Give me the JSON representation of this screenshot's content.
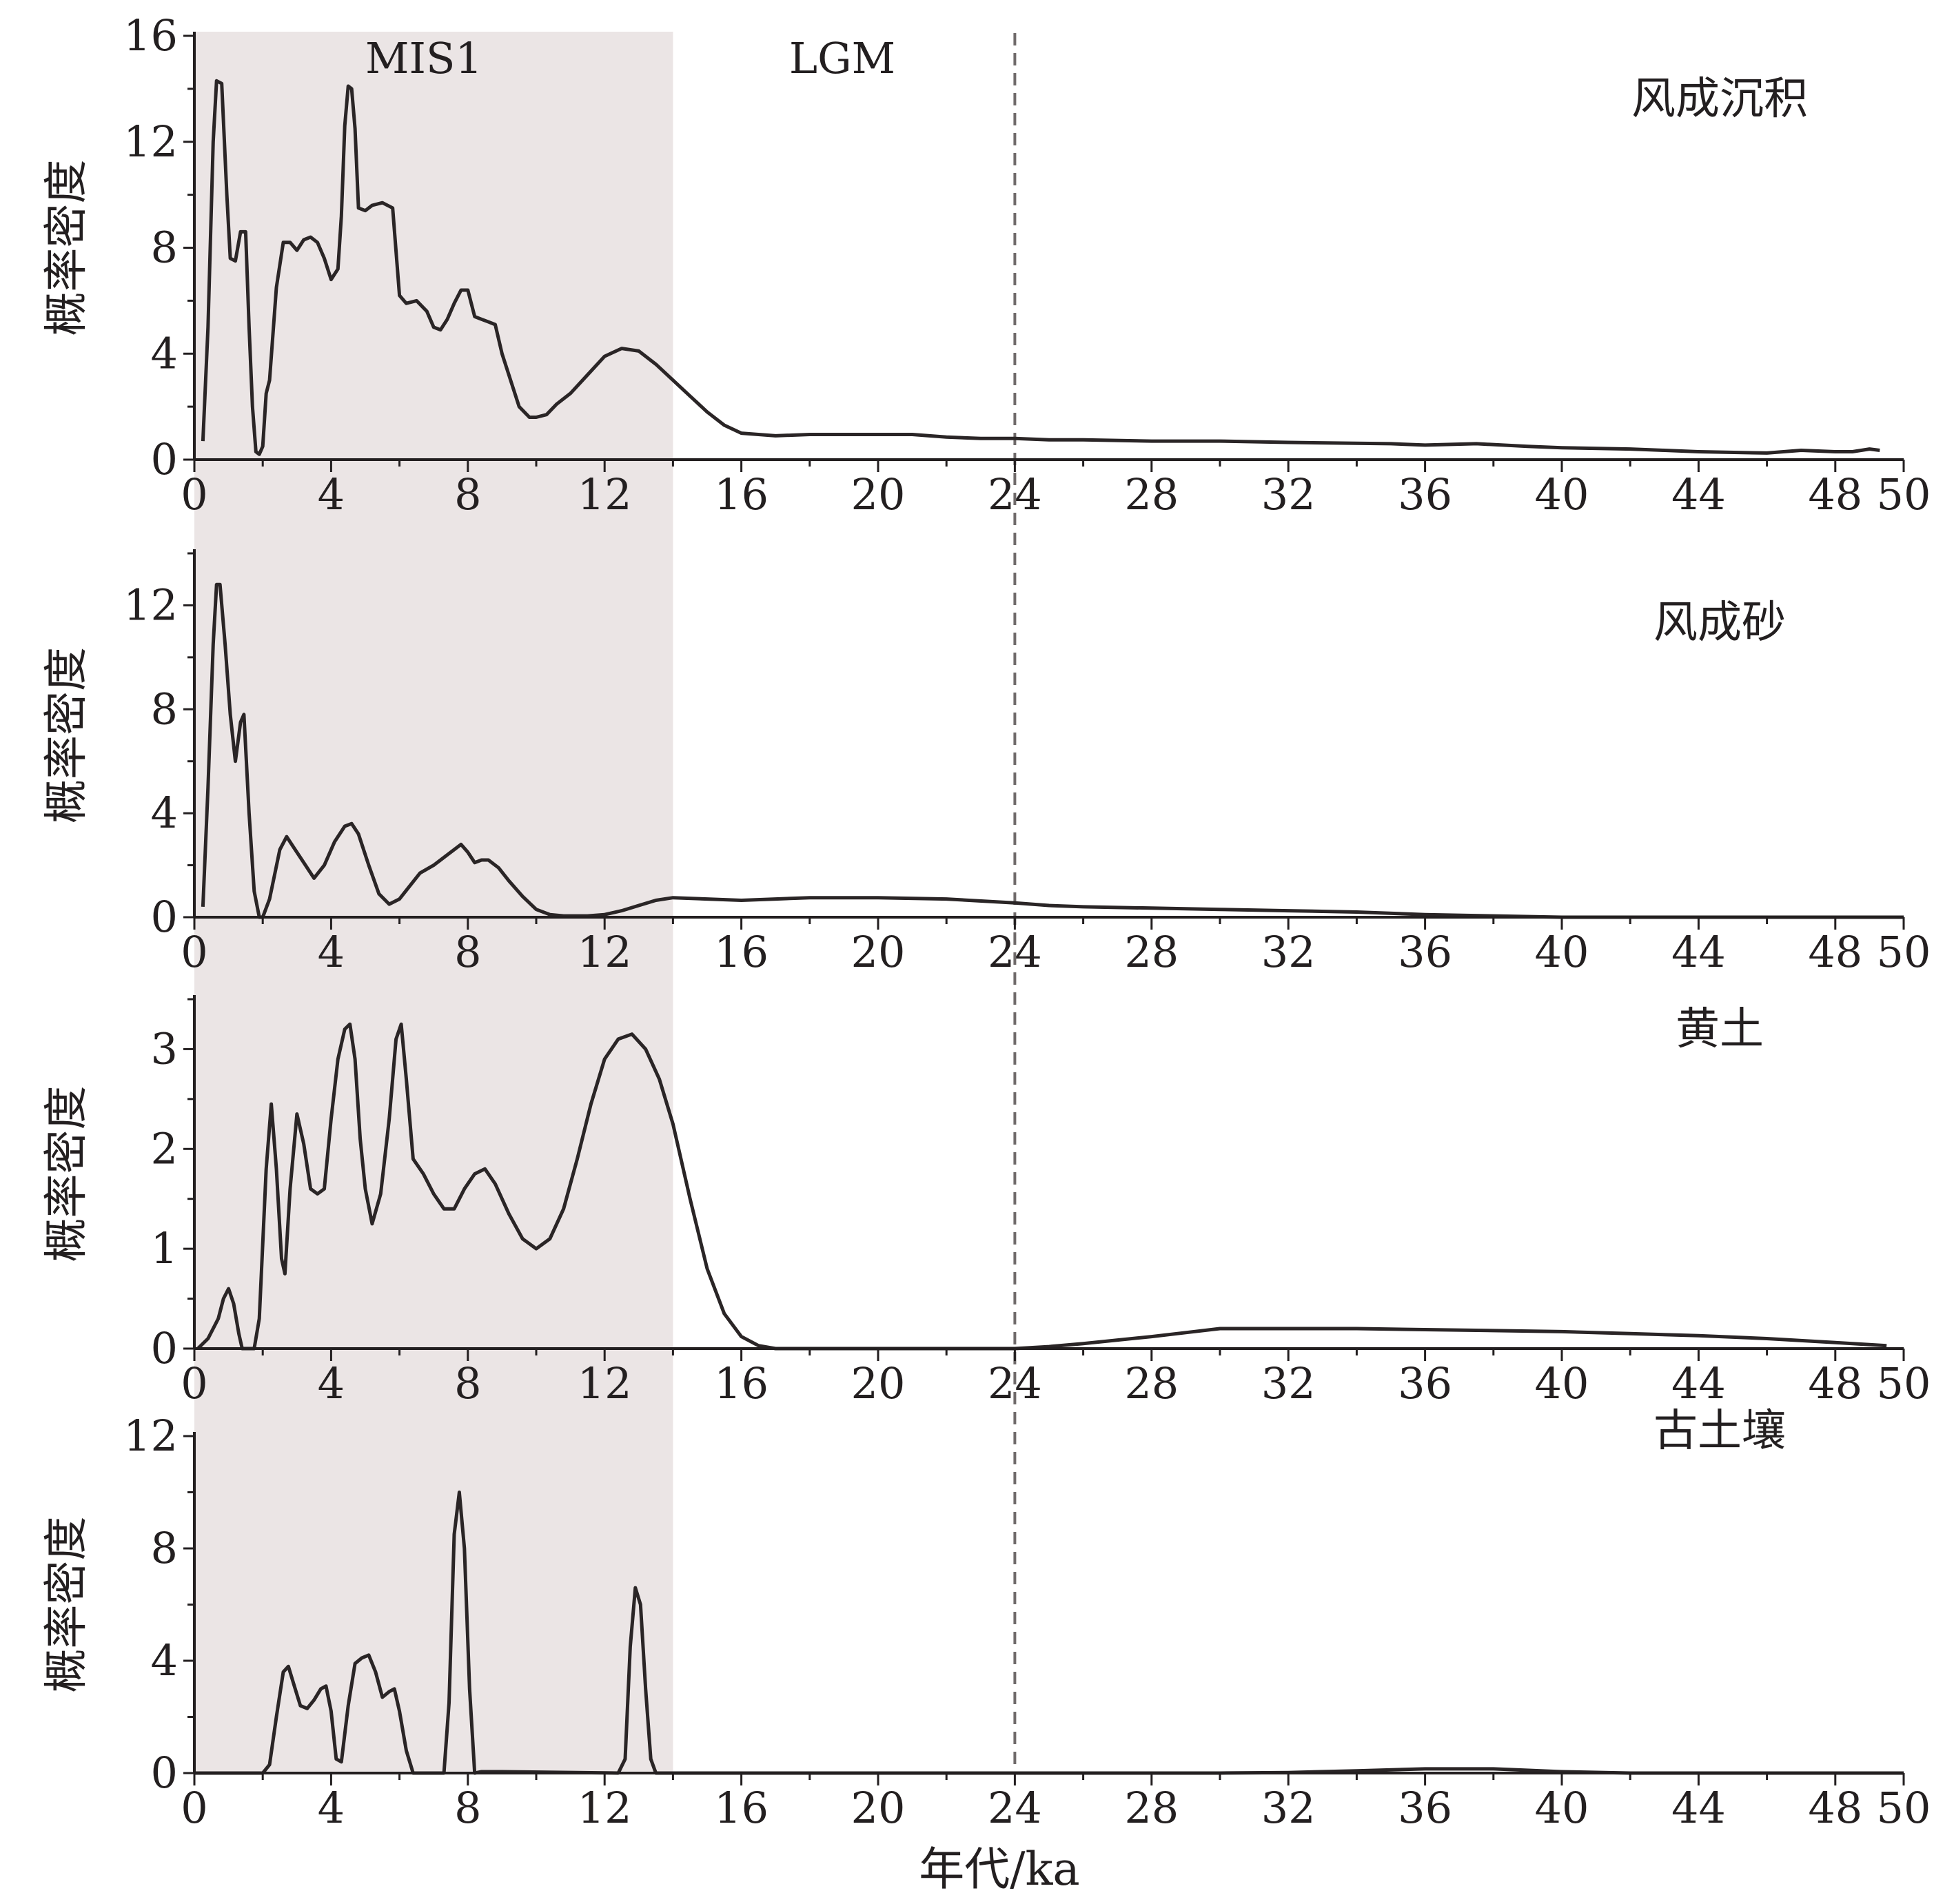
{
  "figure": {
    "xlabel": "年代/ka",
    "colors": {
      "axis": "#231f20",
      "line": "#2a2526",
      "shade": "#ebe5e5",
      "lgm_line": "#6f6a6a",
      "text": "#231f20"
    }
  },
  "chart_data": [
    {
      "type": "line",
      "panel_label": "风成沉积",
      "ylabel": "概率密度",
      "xlim": [
        0,
        50
      ],
      "ylim": [
        0,
        16
      ],
      "xticks": [
        0,
        4,
        8,
        12,
        16,
        20,
        24,
        28,
        32,
        36,
        40,
        44,
        48,
        50
      ],
      "yticks": [
        0,
        4,
        8,
        12,
        16
      ],
      "shaded_region": {
        "x": [
          0,
          14
        ],
        "label": "MIS1"
      },
      "reference_line": {
        "x": 24,
        "style": "dashed",
        "label": "LGM"
      },
      "series": [
        {
          "x": [
            0.25,
            0.4,
            0.55,
            0.65,
            0.8,
            0.95,
            1.05,
            1.2,
            1.35,
            1.5,
            1.6,
            1.7,
            1.8,
            1.9,
            2.0,
            2.1,
            2.2,
            2.4,
            2.6,
            2.8,
            3.0,
            3.2,
            3.4,
            3.6,
            3.8,
            4.0,
            4.2,
            4.3,
            4.4,
            4.5,
            4.6,
            4.7,
            4.8,
            5.0,
            5.2,
            5.5,
            5.8,
            6.0,
            6.2,
            6.5,
            6.8,
            7.0,
            7.2,
            7.4,
            7.6,
            7.8,
            8.0,
            8.2,
            8.4,
            8.6,
            8.8,
            9.0,
            9.2,
            9.5,
            9.8,
            10.0,
            10.3,
            10.6,
            11.0,
            11.5,
            12.0,
            12.5,
            13.0,
            13.5,
            14.0,
            14.5,
            15.0,
            15.5,
            16.0,
            16.5,
            17.0,
            18.0,
            19.0,
            20.0,
            21.0,
            22.0,
            23.0,
            24.0,
            25.0,
            26.0,
            28.0,
            30.0,
            32.0,
            35.0,
            36.0,
            37.5,
            39.0,
            40.0,
            42.0,
            43.0,
            44.0,
            46.0,
            47.0,
            48.0,
            48.5,
            49.0,
            49.3
          ],
          "y": [
            0.7,
            5.0,
            12.0,
            14.3,
            14.2,
            10.0,
            7.6,
            7.5,
            8.6,
            8.6,
            5.0,
            2.0,
            0.3,
            0.2,
            0.5,
            2.5,
            3.0,
            6.5,
            8.2,
            8.2,
            7.9,
            8.3,
            8.4,
            8.2,
            7.6,
            6.8,
            7.2,
            9.2,
            12.6,
            14.1,
            14.0,
            12.5,
            9.5,
            9.4,
            9.6,
            9.7,
            9.5,
            6.2,
            5.9,
            6.0,
            5.6,
            5.0,
            4.9,
            5.3,
            5.9,
            6.4,
            6.4,
            5.4,
            5.3,
            5.2,
            5.1,
            4.0,
            3.2,
            2.0,
            1.6,
            1.6,
            1.7,
            2.1,
            2.5,
            3.2,
            3.9,
            4.2,
            4.1,
            3.6,
            3.0,
            2.4,
            1.8,
            1.3,
            1.0,
            0.95,
            0.9,
            0.95,
            0.95,
            0.95,
            0.95,
            0.85,
            0.8,
            0.8,
            0.75,
            0.75,
            0.7,
            0.7,
            0.65,
            0.6,
            0.55,
            0.6,
            0.5,
            0.45,
            0.4,
            0.35,
            0.3,
            0.25,
            0.35,
            0.3,
            0.3,
            0.4,
            0.35
          ]
        }
      ]
    },
    {
      "type": "line",
      "panel_label": "风成砂",
      "ylabel": "概率密度",
      "xlim": [
        0,
        50
      ],
      "ylim": [
        0,
        14
      ],
      "xticks": [
        0,
        4,
        8,
        12,
        16,
        20,
        24,
        28,
        32,
        36,
        40,
        44,
        48,
        50
      ],
      "yticks": [
        0,
        4,
        8,
        12
      ],
      "series": [
        {
          "x": [
            0.25,
            0.4,
            0.55,
            0.65,
            0.75,
            0.9,
            1.05,
            1.2,
            1.35,
            1.45,
            1.6,
            1.75,
            1.9,
            2.0,
            2.2,
            2.5,
            2.7,
            2.9,
            3.2,
            3.5,
            3.8,
            4.1,
            4.4,
            4.6,
            4.8,
            5.1,
            5.4,
            5.7,
            6.0,
            6.3,
            6.6,
            7.0,
            7.4,
            7.8,
            8.0,
            8.2,
            8.4,
            8.6,
            8.9,
            9.2,
            9.6,
            10.0,
            10.4,
            10.8,
            11.5,
            12.0,
            12.5,
            13.0,
            13.5,
            14.0,
            15.0,
            16.0,
            17.0,
            18.0,
            20.0,
            22.0,
            24.0,
            25.0,
            26.0,
            28.0,
            30.0,
            32.0,
            34.0,
            36.0,
            38.0,
            40.0,
            44.0,
            48.0,
            50.0
          ],
          "y": [
            0.4,
            5.0,
            10.5,
            12.8,
            12.8,
            10.5,
            7.8,
            6.0,
            7.5,
            7.8,
            4.0,
            1.0,
            0.0,
            0.0,
            0.7,
            2.6,
            3.1,
            2.7,
            2.1,
            1.5,
            2.0,
            2.9,
            3.5,
            3.6,
            3.2,
            2.0,
            0.9,
            0.5,
            0.7,
            1.2,
            1.7,
            2.0,
            2.4,
            2.8,
            2.5,
            2.1,
            2.2,
            2.2,
            1.9,
            1.4,
            0.8,
            0.3,
            0.1,
            0.05,
            0.05,
            0.1,
            0.25,
            0.45,
            0.65,
            0.75,
            0.7,
            0.65,
            0.7,
            0.75,
            0.75,
            0.7,
            0.55,
            0.45,
            0.4,
            0.35,
            0.3,
            0.25,
            0.2,
            0.1,
            0.05,
            0.0,
            0.0,
            0.0,
            0.0
          ]
        }
      ]
    },
    {
      "type": "line",
      "panel_label": "黄土",
      "ylabel": "概率密度",
      "xlim": [
        0,
        50
      ],
      "ylim": [
        0,
        3.5
      ],
      "xticks": [
        0,
        4,
        8,
        12,
        16,
        20,
        24,
        28,
        32,
        36,
        40,
        44,
        48,
        50
      ],
      "yticks": [
        0,
        1,
        2,
        3
      ],
      "series": [
        {
          "x": [
            0.1,
            0.4,
            0.7,
            0.85,
            1.0,
            1.15,
            1.3,
            1.4,
            1.6,
            1.75,
            1.9,
            2.1,
            2.25,
            2.4,
            2.55,
            2.65,
            2.8,
            3.0,
            3.2,
            3.4,
            3.6,
            3.8,
            4.0,
            4.2,
            4.4,
            4.55,
            4.7,
            4.85,
            5.0,
            5.2,
            5.45,
            5.7,
            5.9,
            6.05,
            6.2,
            6.4,
            6.7,
            7.0,
            7.3,
            7.6,
            7.9,
            8.2,
            8.5,
            8.8,
            9.2,
            9.6,
            10.0,
            10.4,
            10.8,
            11.2,
            11.6,
            12.0,
            12.4,
            12.8,
            13.2,
            13.6,
            14.0,
            14.5,
            15.0,
            15.5,
            16.0,
            16.5,
            17.0,
            18.0,
            20.0,
            22.0,
            24.0,
            25.0,
            26.0,
            28.0,
            29.0,
            30.0,
            32.0,
            34.0,
            36.0,
            38.0,
            40.0,
            42.0,
            44.0,
            46.0,
            48.0,
            49.5
          ],
          "y": [
            0.0,
            0.1,
            0.3,
            0.5,
            0.6,
            0.45,
            0.15,
            0.0,
            0.0,
            0.0,
            0.3,
            1.8,
            2.45,
            1.8,
            0.9,
            0.75,
            1.6,
            2.35,
            2.05,
            1.6,
            1.55,
            1.6,
            2.3,
            2.9,
            3.2,
            3.25,
            2.9,
            2.1,
            1.6,
            1.25,
            1.55,
            2.3,
            3.1,
            3.25,
            2.7,
            1.9,
            1.75,
            1.55,
            1.4,
            1.4,
            1.6,
            1.75,
            1.8,
            1.65,
            1.35,
            1.1,
            1.0,
            1.1,
            1.4,
            1.9,
            2.45,
            2.9,
            3.1,
            3.15,
            3.0,
            2.7,
            2.25,
            1.5,
            0.8,
            0.35,
            0.12,
            0.03,
            0.0,
            0.0,
            0.0,
            0.0,
            0.0,
            0.02,
            0.05,
            0.12,
            0.16,
            0.2,
            0.2,
            0.2,
            0.19,
            0.18,
            0.17,
            0.15,
            0.13,
            0.1,
            0.06,
            0.03
          ]
        }
      ]
    },
    {
      "type": "line",
      "panel_label": "古土壤",
      "ylabel": "概率密度",
      "xlim": [
        0,
        50
      ],
      "ylim": [
        0,
        12
      ],
      "xticks": [
        0,
        4,
        8,
        12,
        16,
        20,
        24,
        28,
        32,
        36,
        40,
        44,
        48,
        50
      ],
      "yticks": [
        0,
        4,
        8,
        12
      ],
      "series": [
        {
          "x": [
            0.0,
            2.0,
            2.2,
            2.4,
            2.6,
            2.75,
            2.9,
            3.1,
            3.3,
            3.5,
            3.7,
            3.85,
            4.0,
            4.15,
            4.3,
            4.5,
            4.7,
            4.9,
            5.1,
            5.3,
            5.5,
            5.7,
            5.85,
            6.0,
            6.2,
            6.4,
            7.3,
            7.45,
            7.6,
            7.75,
            7.9,
            8.05,
            8.2,
            8.4,
            9.0,
            12.4,
            12.6,
            12.75,
            12.9,
            13.05,
            13.2,
            13.35,
            13.5,
            14.0,
            24.0,
            30.0,
            32.0,
            34.0,
            36.0,
            38.0,
            40.0,
            42.0,
            50.0
          ],
          "y": [
            0.0,
            0.0,
            0.3,
            2.0,
            3.6,
            3.8,
            3.2,
            2.4,
            2.3,
            2.6,
            3.0,
            3.1,
            2.2,
            0.5,
            0.4,
            2.4,
            3.9,
            4.1,
            4.2,
            3.6,
            2.7,
            2.9,
            3.0,
            2.2,
            0.8,
            0.0,
            0.0,
            2.5,
            8.5,
            10.0,
            8.0,
            3.0,
            0.0,
            0.05,
            0.05,
            0.0,
            0.5,
            4.5,
            6.6,
            6.0,
            3.0,
            0.5,
            0.0,
            0.0,
            0.0,
            0.0,
            0.02,
            0.08,
            0.15,
            0.15,
            0.05,
            0.0,
            0.0
          ]
        }
      ]
    }
  ]
}
